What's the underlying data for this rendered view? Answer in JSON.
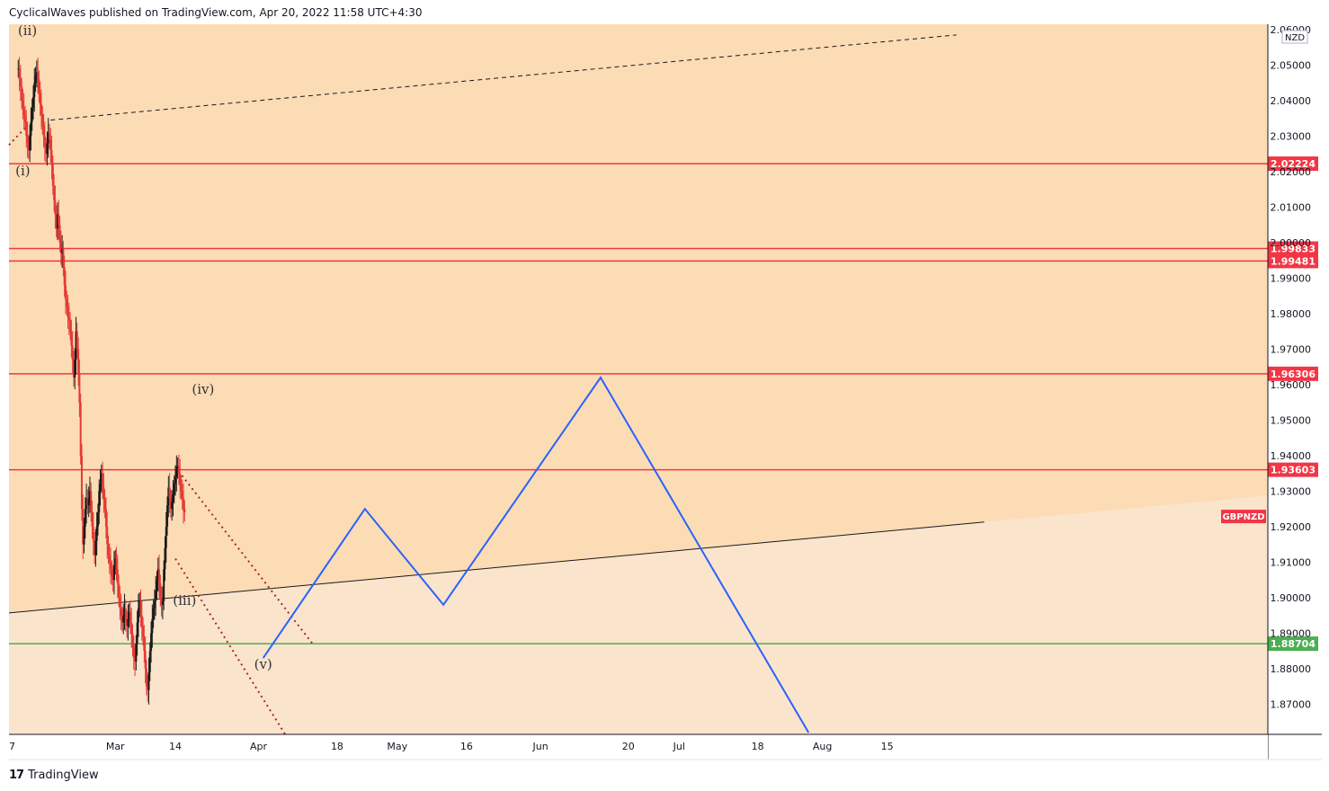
{
  "header": {
    "published_text": "CyclicalWaves published on TradingView.com, Apr 20, 2022 11:58 UTC+4:30"
  },
  "footer": {
    "brand": "TradingView",
    "logo_text": "17"
  },
  "chart_data": {
    "type": "candlestick",
    "symbol": "GBPNZD",
    "currency_label": "NZD",
    "colors": {
      "background_upper": "#fcdcb5",
      "background_lower": "#fbe4cc",
      "candles": "#1a1a1a",
      "candles_down": "#e53935",
      "resistance": "#f23645",
      "support": "#4caf50",
      "projection": "#2962ff"
    },
    "y_range": [
      1.8615,
      2.0615
    ],
    "y_ticks": [
      "1.87000",
      "1.88000",
      "1.89000",
      "1.90000",
      "1.91000",
      "1.92000",
      "1.93000",
      "1.94000",
      "1.95000",
      "1.96000",
      "1.97000",
      "1.98000",
      "1.99000",
      "2.00000",
      "2.01000",
      "2.02000",
      "2.03000",
      "2.04000",
      "2.05000",
      "2.06000"
    ],
    "x_ticks": [
      "7",
      "Mar",
      "14",
      "Apr",
      "18",
      "May",
      "16",
      "Jun",
      "20",
      "Jul",
      "18",
      "Aug",
      "15"
    ],
    "price_levels": [
      {
        "label": "2.02224",
        "value": 2.02224,
        "kind": "resistance"
      },
      {
        "label": "1.99833",
        "value": 1.99833,
        "kind": "resistance"
      },
      {
        "label": "1.99481",
        "value": 1.99481,
        "kind": "resistance"
      },
      {
        "label": "1.96306",
        "value": 1.96306,
        "kind": "resistance"
      },
      {
        "label": "1.93603",
        "value": 1.93603,
        "kind": "resistance"
      },
      {
        "label": "1.88704",
        "value": 1.88704,
        "kind": "support"
      }
    ],
    "symbol_price": 1.923,
    "wave_labels": [
      {
        "text": "(ii)",
        "date": "2022-02-10",
        "price": 2.0585
      },
      {
        "text": "(i)",
        "date": "2022-02-09",
        "price": 2.019
      },
      {
        "text": "(iii)",
        "date": "2022-03-16",
        "price": 1.898
      },
      {
        "text": "(iv)",
        "date": "2022-03-20",
        "price": 1.9575
      },
      {
        "text": "(v)",
        "date": "2022-04-02",
        "price": 1.88
      }
    ],
    "close_series": {
      "start_date": "2022-02-08",
      "step_days": 0.25,
      "values": [
        2.049,
        2.046,
        2.044,
        2.04,
        2.038,
        2.036,
        2.034,
        2.03,
        2.028,
        2.026,
        2.03,
        2.034,
        2.038,
        2.041,
        2.045,
        2.047,
        2.048,
        2.046,
        2.042,
        2.039,
        2.036,
        2.033,
        2.03,
        2.027,
        2.025,
        2.028,
        2.031,
        2.029,
        2.026,
        2.022,
        2.016,
        2.012,
        2.008,
        2.004,
        2.008,
        2.005,
        2,
        1.997,
        1.998,
        1.993,
        1.988,
        1.984,
        1.982,
        1.979,
        1.978,
        1.975,
        1.971,
        1.967,
        1.962,
        1.967,
        1.975,
        1.97,
        1.963,
        1.955,
        1.94,
        1.925,
        1.915,
        1.92,
        1.925,
        1.928,
        1.926,
        1.928,
        1.93,
        1.924,
        1.92,
        1.916,
        1.912,
        1.916,
        1.92,
        1.924,
        1.93,
        1.932,
        1.935,
        1.931,
        1.928,
        1.925,
        1.92,
        1.915,
        1.912,
        1.91,
        1.908,
        1.906,
        1.905,
        1.909,
        1.911,
        1.908,
        1.904,
        1.9,
        1.897,
        1.895,
        1.893,
        1.895,
        1.897,
        1.893,
        1.892,
        1.894,
        1.896,
        1.893,
        1.89,
        1.886,
        1.883,
        1.882,
        1.887,
        1.893,
        1.897,
        1.899,
        1.895,
        1.892,
        1.889,
        1.885,
        1.88,
        1.875,
        1.874,
        1.879,
        1.885,
        1.89,
        1.894,
        1.897,
        1.899,
        1.902,
        1.905,
        1.908,
        1.904,
        1.9,
        1.898,
        1.899,
        1.908,
        1.914,
        1.92,
        1.926,
        1.931,
        1.928,
        1.925,
        1.927,
        1.929,
        1.932,
        1.934,
        1.936,
        1.937,
        1.935,
        1.932,
        1.93,
        1.928,
        1.925,
        1.924
      ]
    },
    "trendlines": [
      {
        "style": "dashed",
        "color": "#1a1a1a",
        "from": {
          "date": "2022-02-15",
          "price": 2.0345
        },
        "to": {
          "date": "2022-08-30",
          "price": 2.0585
        }
      },
      {
        "style": "solid",
        "color": "#1a1a1a",
        "from": {
          "date": "2022-02-06",
          "price": 1.8957
        },
        "to": {
          "date": "2022-09-05",
          "price": 1.9213
        }
      },
      {
        "style": "dotted",
        "color": "#a52a2a",
        "from": {
          "date": "2022-03-14",
          "price": 1.9368
        },
        "to": {
          "date": "2022-04-13",
          "price": 1.8865
        }
      },
      {
        "style": "dotted",
        "color": "#a52a2a",
        "from": {
          "date": "2022-03-14",
          "price": 1.911
        },
        "to": {
          "date": "2022-04-07",
          "price": 1.861
        }
      },
      {
        "style": "dotted",
        "color": "#a52a2a",
        "from": {
          "date": "2022-02-06",
          "price": 2.0275
        },
        "to": {
          "date": "2022-02-10",
          "price": 2.033
        }
      }
    ],
    "projection": [
      {
        "date": "2022-04-02",
        "price": 1.883
      },
      {
        "date": "2022-04-24",
        "price": 1.925
      },
      {
        "date": "2022-05-11",
        "price": 1.898
      },
      {
        "date": "2022-06-14",
        "price": 1.962
      },
      {
        "date": "2022-07-29",
        "price": 1.862
      }
    ]
  }
}
